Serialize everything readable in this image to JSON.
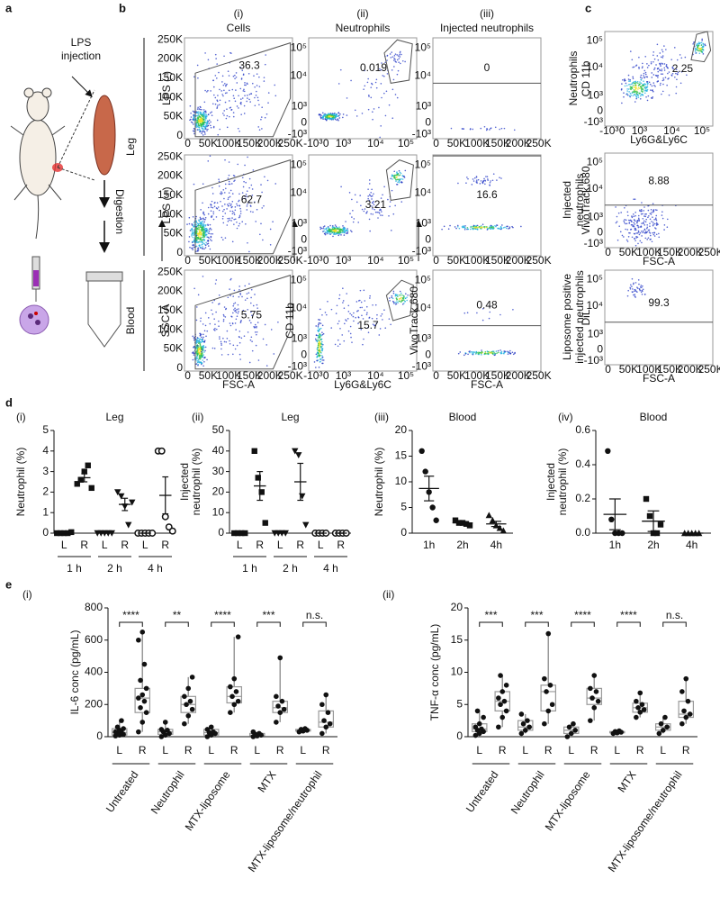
{
  "figure": {
    "panel_labels": {
      "a": "a",
      "b": "b",
      "c": "c",
      "d": "d",
      "e": "e"
    },
    "panel_a": {
      "injection": [
        "LPS",
        "injection"
      ],
      "digestion": "Digestion"
    },
    "panel_b": {
      "columns": [
        {
          "index": "(i)",
          "title": "Cells"
        },
        {
          "index": "(ii)",
          "title": "Neutrophils"
        },
        {
          "index": "(iii)",
          "title": "Injected neutrophils"
        }
      ],
      "row_labels": [
        "LPS (-)",
        "LPS (+)"
      ],
      "group_labels": [
        "Leg",
        "Blood"
      ],
      "gates": [
        [
          "36.3",
          "0.019",
          "0"
        ],
        [
          "62.7",
          "3.21",
          "16.6"
        ],
        [
          "5.75",
          "15.7",
          "0.48"
        ]
      ],
      "x_labels": [
        "FSC-A",
        "Ly6G&Ly6C",
        "FSC-A"
      ],
      "y_labels": [
        "SSC-A",
        "CD 11b",
        "VivoTrack 680"
      ]
    },
    "panel_c": {
      "row_labels": [
        [
          "Neutrophils"
        ],
        [
          "Injected",
          "neutrophils"
        ],
        [
          "Liposome positive",
          "injected neutrophils"
        ]
      ],
      "gates": [
        "2.25",
        "8.88",
        "99.3"
      ],
      "x_labels": [
        "Ly6G&Ly6C",
        "FSC-A",
        "FSC-A"
      ],
      "y_labels": [
        "CD 11b",
        "VivoTrack 680",
        "DiL"
      ]
    },
    "flow_ticks": {
      "linear": [
        "0",
        "50K",
        "100K",
        "150K",
        "200K",
        "250K"
      ],
      "log": [
        "-10³",
        "0",
        "10³",
        "10⁴",
        "10⁵"
      ]
    }
  },
  "chart_data": [
    {
      "type": "dot",
      "index": "(i)",
      "title": "Leg",
      "y_label": [
        "Neutrophil (%)"
      ],
      "categories": [
        "L",
        "R",
        "L",
        "R",
        "L",
        "R"
      ],
      "groups": [
        "1 h",
        "2 h",
        "4 h"
      ],
      "markers": [
        "square",
        "triangle-down",
        "circle-open"
      ],
      "points": [
        [
          0,
          0,
          0,
          0,
          0.05
        ],
        [
          2.4,
          2.6,
          3.0,
          3.3,
          2.2
        ],
        [
          0,
          0,
          0,
          0,
          0
        ],
        [
          2.0,
          1.8,
          1.3,
          0.4,
          1.5
        ],
        [
          0,
          0,
          0,
          0,
          0
        ],
        [
          4.0,
          4.0,
          0.8,
          0.3,
          0.1
        ]
      ],
      "mean": [
        0.01,
        2.7,
        0,
        1.4,
        0,
        1.84
      ],
      "sem": [
        0.01,
        0.2,
        0,
        0.3,
        0,
        0.9
      ],
      "ylim": [
        0,
        5
      ],
      "yticks": [
        0,
        1,
        2,
        3,
        4,
        5
      ]
    },
    {
      "type": "dot",
      "index": "(ii)",
      "title": "Leg",
      "y_label": [
        "Injected",
        "neutrophil (%)"
      ],
      "categories": [
        "L",
        "R",
        "L",
        "R",
        "L",
        "R"
      ],
      "groups": [
        "1 h",
        "2 h",
        "4 h"
      ],
      "markers": [
        "square",
        "triangle-down",
        "circle-open"
      ],
      "points": [
        [
          0,
          0,
          0,
          0
        ],
        [
          40,
          27,
          20,
          5
        ],
        [
          0,
          0,
          0,
          0
        ],
        [
          40,
          38,
          18,
          4
        ],
        [
          0,
          0,
          0,
          0
        ],
        [
          0,
          0,
          0,
          0
        ]
      ],
      "mean": [
        0,
        23,
        0,
        25,
        0,
        0
      ],
      "sem": [
        0,
        7,
        0,
        9,
        0,
        0
      ],
      "ylim": [
        0,
        50
      ],
      "yticks": [
        0,
        10,
        20,
        30,
        40,
        50
      ]
    },
    {
      "type": "dot",
      "index": "(iii)",
      "title": "Blood",
      "y_label": [
        "Neutrophil (%)"
      ],
      "categories": [
        "1h",
        "2h",
        "4h"
      ],
      "markers": [
        "circle",
        "square",
        "triangle"
      ],
      "points": [
        [
          16,
          12,
          8,
          5,
          2.5
        ],
        [
          2.5,
          2,
          2,
          1.8,
          1.5
        ],
        [
          3.5,
          2.5,
          1.5,
          1,
          0.5
        ]
      ],
      "mean": [
        8.7,
        2,
        1.8
      ],
      "sem": [
        2.4,
        0.2,
        0.5
      ],
      "ylim": [
        0,
        20
      ],
      "yticks": [
        0,
        5,
        10,
        15,
        20
      ]
    },
    {
      "type": "dot",
      "index": "(iv)",
      "title": "Blood",
      "y_label": [
        "Injected",
        "neutrophil (%)"
      ],
      "categories": [
        "1h",
        "2h",
        "4h"
      ],
      "markers": [
        "circle",
        "square",
        "triangle"
      ],
      "points": [
        [
          0.48,
          0.08,
          0,
          0,
          0
        ],
        [
          0.2,
          0.1,
          0,
          0,
          0.05
        ],
        [
          0,
          0,
          0,
          0,
          0
        ]
      ],
      "mean": [
        0.11,
        0.07,
        0
      ],
      "sem": [
        0.09,
        0.06,
        0
      ],
      "ylim": [
        0,
        0.6
      ],
      "yticks": [
        {
          "value": 0,
          "label": "0.0"
        },
        0.2,
        0.4,
        0.6
      ]
    },
    {
      "type": "box",
      "index": "(i)",
      "y_label": [
        "IL-6 conc (pg/mL)"
      ],
      "categories": [
        "L",
        "R",
        "L",
        "R",
        "L",
        "R",
        "L",
        "R",
        "L",
        "R"
      ],
      "groups": [
        "Untreated",
        "Neutrophil",
        "MTX-liposome",
        "MTX",
        "MTX-liposome/neutrophil"
      ],
      "significance": [
        "****",
        "**",
        "****",
        "***",
        "n.s."
      ],
      "boxes": [
        [
          5,
          10,
          25,
          50,
          100
        ],
        [
          30,
          150,
          240,
          300,
          650
        ],
        [
          0,
          15,
          30,
          45,
          90
        ],
        [
          80,
          150,
          200,
          250,
          370
        ],
        [
          0,
          10,
          25,
          45,
          60
        ],
        [
          150,
          210,
          250,
          310,
          620
        ],
        [
          0,
          5,
          10,
          20,
          30
        ],
        [
          90,
          150,
          180,
          220,
          490
        ],
        [
          30,
          35,
          40,
          45,
          50
        ],
        [
          20,
          60,
          90,
          160,
          260
        ]
      ],
      "points": [
        [
          5,
          10,
          15,
          20,
          25,
          30,
          40,
          50,
          60,
          100
        ],
        [
          30,
          90,
          150,
          180,
          220,
          240,
          260,
          300,
          350,
          450,
          600,
          650
        ],
        [
          0,
          10,
          20,
          30,
          40,
          45,
          90
        ],
        [
          80,
          130,
          170,
          200,
          220,
          250,
          300,
          370
        ],
        [
          0,
          10,
          20,
          25,
          30,
          45,
          60
        ],
        [
          150,
          200,
          220,
          250,
          280,
          310,
          360,
          620
        ],
        [
          0,
          5,
          10,
          15,
          20,
          30
        ],
        [
          90,
          150,
          170,
          190,
          220,
          250,
          490
        ],
        [
          30,
          35,
          40,
          45,
          50
        ],
        [
          20,
          60,
          80,
          100,
          150,
          200,
          260
        ]
      ],
      "ylim": [
        0,
        800
      ],
      "yticks": [
        0,
        200,
        400,
        600,
        800
      ]
    },
    {
      "type": "box",
      "index": "(ii)",
      "y_label": [
        "TNF-α conc (pg/mL)"
      ],
      "categories": [
        "L",
        "R",
        "L",
        "R",
        "L",
        "R",
        "L",
        "R",
        "L",
        "R"
      ],
      "groups": [
        "Untreated",
        "Neutrophil",
        "MTX-liposome",
        "MTX",
        "MTX-liposome/neutrophil"
      ],
      "significance": [
        "***",
        "***",
        "****",
        "****",
        "n.s."
      ],
      "boxes": [
        [
          0.2,
          0.8,
          1.2,
          2,
          4
        ],
        [
          1.5,
          4,
          5.5,
          7,
          9.5
        ],
        [
          0.5,
          1,
          1.5,
          2.5,
          3.5
        ],
        [
          2,
          4,
          7,
          8,
          16
        ],
        [
          0,
          0.5,
          1,
          1.5,
          2
        ],
        [
          2.5,
          5,
          6,
          7.5,
          9.5
        ],
        [
          0.5,
          0.6,
          0.7,
          0.8,
          0.9
        ],
        [
          3,
          3.8,
          4.5,
          5.2,
          6.8
        ],
        [
          0.5,
          1,
          1.5,
          2,
          3
        ],
        [
          2,
          3,
          3.5,
          5.5,
          9
        ]
      ],
      "points": [
        [
          0.2,
          0.5,
          0.8,
          1,
          1.2,
          1.5,
          2,
          3,
          4
        ],
        [
          1.5,
          3,
          4,
          5,
          5.5,
          6,
          7,
          8,
          9.5
        ],
        [
          0.5,
          1,
          1.5,
          2,
          2.5,
          3.5
        ],
        [
          2,
          4,
          5,
          7,
          8,
          9,
          16
        ],
        [
          0,
          0.5,
          1,
          1.5,
          2
        ],
        [
          2.5,
          4.5,
          5.5,
          6,
          7,
          7.5,
          9.5
        ],
        [
          0.5,
          0.6,
          0.7,
          0.8,
          0.9
        ],
        [
          3,
          3.8,
          4.2,
          4.5,
          5,
          5.5,
          6.8
        ],
        [
          0.5,
          1,
          1.5,
          2,
          3
        ],
        [
          2,
          3,
          3.5,
          4,
          5.5,
          7,
          9
        ]
      ],
      "ylim": [
        0,
        20
      ],
      "yticks": [
        0,
        5,
        10,
        15,
        20
      ]
    }
  ]
}
